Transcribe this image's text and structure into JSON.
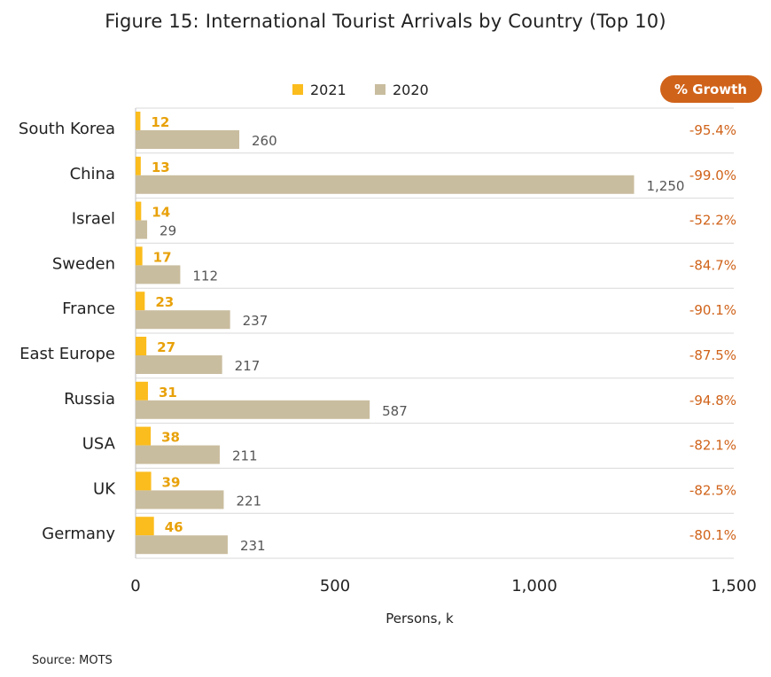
{
  "title": "Figure 15: International Tourist Arrivals by Country (Top 10)",
  "source": "Source: MOTS",
  "growth_header": "% Growth",
  "colors": {
    "series_2021": "#fbbc1d",
    "series_2020": "#c9bd9f",
    "label_2021": "#e8a10a",
    "label_2020": "#555555",
    "growth": "#d0631a",
    "growth_badge": "#d0631a",
    "grid": "#d9d9d9"
  },
  "chart_data": {
    "type": "bar",
    "orientation": "horizontal",
    "title": "Figure 15: International Tourist Arrivals by Country (Top 10)",
    "xlabel": "Persons, k",
    "ylabel": "",
    "xlim": [
      0,
      1500
    ],
    "xticks": [
      0,
      500,
      1000,
      1500
    ],
    "xtick_labels": [
      "0",
      "500",
      "1,000",
      "1,500"
    ],
    "legend_placement": "top",
    "categories": [
      "South Korea",
      "China",
      "Israel",
      "Sweden",
      "France",
      "East Europe",
      "Russia",
      "USA",
      "UK",
      "Germany"
    ],
    "series": [
      {
        "name": "2021",
        "values": [
          12,
          13,
          14,
          17,
          23,
          27,
          31,
          38,
          39,
          46
        ],
        "labels": [
          "12",
          "13",
          "14",
          "17",
          "23",
          "27",
          "31",
          "38",
          "39",
          "46"
        ]
      },
      {
        "name": "2020",
        "values": [
          260,
          1250,
          29,
          112,
          237,
          217,
          587,
          211,
          221,
          231
        ],
        "labels": [
          "260",
          "1,250",
          "29",
          "112",
          "237",
          "217",
          "587",
          "211",
          "221",
          "231"
        ]
      }
    ],
    "growth": [
      "-95.4%",
      "-99.0%",
      "-52.2%",
      "-84.7%",
      "-90.1%",
      "-87.5%",
      "-94.8%",
      "-82.1%",
      "-82.5%",
      "-80.1%"
    ]
  }
}
